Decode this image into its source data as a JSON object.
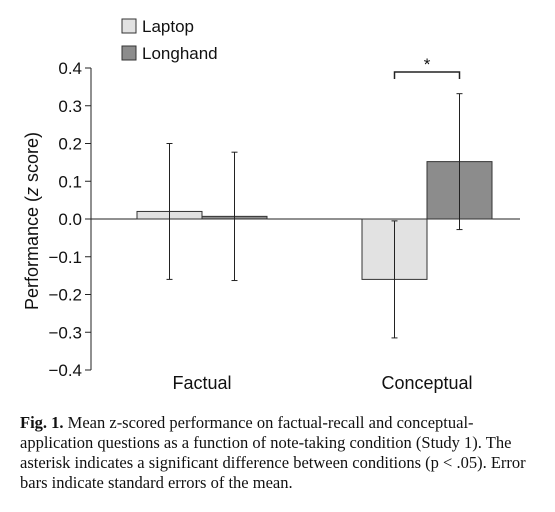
{
  "chart_data": {
    "type": "bar",
    "categories": [
      "Factual",
      "Conceptual"
    ],
    "series": [
      {
        "name": "Laptop",
        "values": [
          0.02,
          -0.16
        ],
        "errors": [
          0.18,
          0.155
        ],
        "color": "#e2e2e2"
      },
      {
        "name": "Longhand",
        "values": [
          0.007,
          0.152
        ],
        "errors": [
          0.17,
          0.18
        ],
        "color": "#8c8c8c"
      }
    ],
    "ylabel": "Performance (",
    "ylabel_italic": "z",
    "ylabel_end": " score)",
    "ylim": [
      -0.4,
      0.4
    ],
    "yticks": [
      "0.4",
      "0.3",
      "0.2",
      "0.1",
      "0.0",
      "−0.1",
      "−0.2",
      "−0.3",
      "−0.4"
    ],
    "ytick_values": [
      0.4,
      0.3,
      0.2,
      0.1,
      0.0,
      -0.1,
      -0.2,
      -0.3,
      -0.4
    ],
    "legend_position": "top-left",
    "significance_marker": "*",
    "significance_category": "Conceptual",
    "grid": false
  },
  "caption": {
    "fig_label": "Fig. 1.",
    "text": " Mean z-scored performance on factual-recall and conceptual-application questions as a function of note-taking condition (Study 1). The asterisk indicates a significant difference between conditions (p < .05). Error bars indicate standard errors of the mean."
  }
}
